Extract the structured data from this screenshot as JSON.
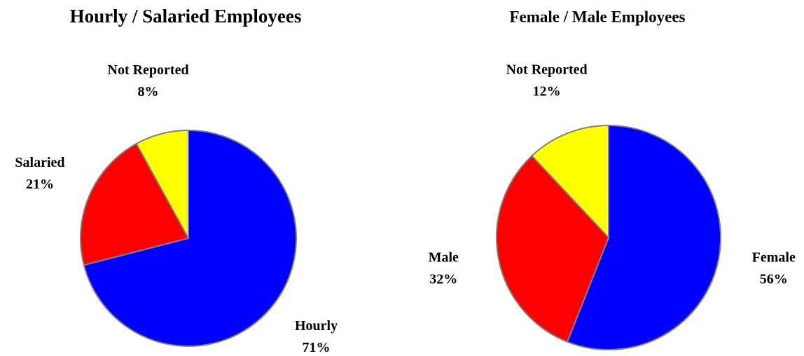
{
  "chart_data": [
    {
      "type": "pie",
      "title": "Hourly / Salaried Employees",
      "categories": [
        "Hourly",
        "Salaried",
        "Not Reported"
      ],
      "values": [
        71,
        21,
        8
      ],
      "value_labels": [
        "71%",
        "21%",
        "8%"
      ],
      "colors": [
        "#0000ff",
        "#ff0000",
        "#ffff00"
      ]
    },
    {
      "type": "pie",
      "title": "Female / Male Employees",
      "categories": [
        "Female",
        "Male",
        "Not Reported"
      ],
      "values": [
        56,
        32,
        12
      ],
      "value_labels": [
        "56%",
        "32%",
        "12%"
      ],
      "colors": [
        "#0000ff",
        "#ff0000",
        "#ffff00"
      ]
    }
  ]
}
